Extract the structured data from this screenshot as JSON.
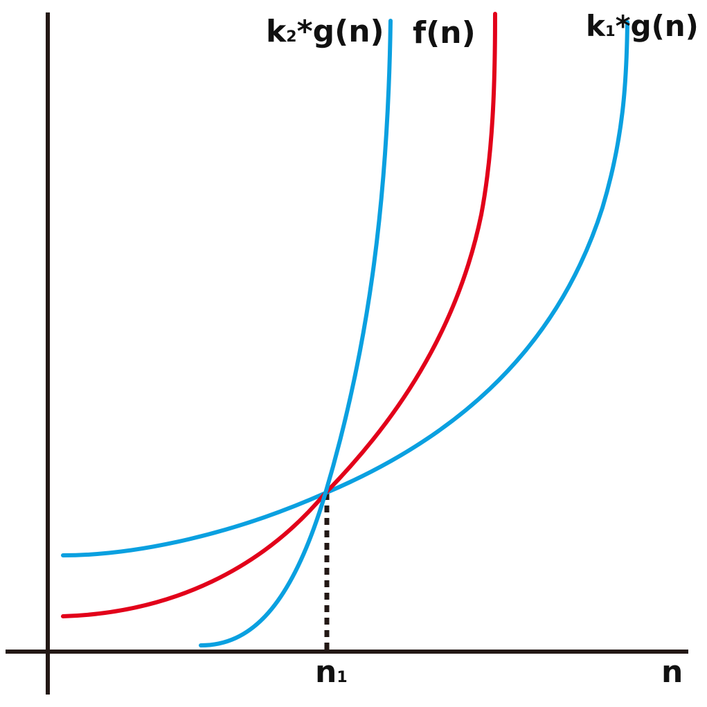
{
  "diagram": {
    "curves": [
      {
        "id": "k2g",
        "label_base": "k",
        "label_sub": "2",
        "label_tail": "*g(n)",
        "color": "#0aa0e0"
      },
      {
        "id": "f",
        "label_base": "f(n)",
        "color": "#e2001a"
      },
      {
        "id": "k1g",
        "label_base": "k",
        "label_sub": "1",
        "label_tail": "*g(n)",
        "color": "#0aa0e0"
      }
    ],
    "axes": {
      "color": "#231815",
      "x_label": "n"
    },
    "intersection": {
      "label_base": "n",
      "label_sub": "1",
      "line_style": "dotted"
    }
  }
}
